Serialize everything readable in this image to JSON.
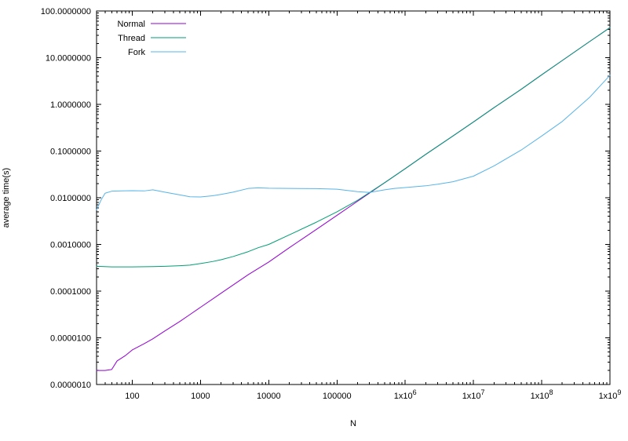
{
  "figure": {
    "background": "#ffffff",
    "border_color": "#000000"
  },
  "chart_data": {
    "type": "line",
    "title": "",
    "xlabel": "N",
    "ylabel": "average time(s)",
    "x_scale": "log",
    "y_scale": "log",
    "xlim": [
      30,
      1000000000
    ],
    "ylim": [
      1e-06,
      100
    ],
    "grid": false,
    "legend_position": "top-left",
    "x_ticks": [
      {
        "value": 100,
        "label": "100"
      },
      {
        "value": 1000,
        "label": "1000"
      },
      {
        "value": 10000,
        "label": "10000"
      },
      {
        "value": 100000,
        "label": "100000"
      },
      {
        "value": 1000000,
        "label": "1x10^6"
      },
      {
        "value": 10000000,
        "label": "1x10^7"
      },
      {
        "value": 100000000,
        "label": "1x10^8"
      },
      {
        "value": 1000000000,
        "label": "1x10^9"
      }
    ],
    "y_ticks": [
      {
        "value": 100,
        "label": "100.0000000"
      },
      {
        "value": 10,
        "label": "10.0000000"
      },
      {
        "value": 1,
        "label": "1.0000000"
      },
      {
        "value": 0.1,
        "label": "0.1000000"
      },
      {
        "value": 0.01,
        "label": "0.0100000"
      },
      {
        "value": 0.001,
        "label": "0.0010000"
      },
      {
        "value": 0.0001,
        "label": "0.0001000"
      },
      {
        "value": 1e-05,
        "label": "0.0000100"
      },
      {
        "value": 1e-06,
        "label": "0.0000010"
      }
    ],
    "series": [
      {
        "name": "Normal",
        "color": "#9400d3",
        "points": [
          [
            30,
            2e-06
          ],
          [
            40,
            2e-06
          ],
          [
            50,
            2.1e-06
          ],
          [
            60,
            3.2e-06
          ],
          [
            80,
            4.2e-06
          ],
          [
            100,
            5.5e-06
          ],
          [
            150,
            7.5e-06
          ],
          [
            200,
            9.5e-06
          ],
          [
            300,
            1.4e-05
          ],
          [
            500,
            2.25e-05
          ],
          [
            700,
            3.15e-05
          ],
          [
            1000,
            4.5e-05
          ],
          [
            2000,
            9e-05
          ],
          [
            5000,
            0.000225
          ],
          [
            10000,
            0.00042
          ],
          [
            20000,
            0.00085
          ],
          [
            50000,
            0.0021
          ],
          [
            100000,
            0.0042
          ],
          [
            200000,
            0.0084
          ],
          [
            500000,
            0.021
          ],
          [
            1000000,
            0.042
          ],
          [
            2000000,
            0.085
          ],
          [
            5000000,
            0.21
          ],
          [
            10000000,
            0.42
          ],
          [
            20000000,
            0.85
          ],
          [
            50000000,
            2.1
          ],
          [
            100000000,
            4.3
          ],
          [
            200000000,
            8.7
          ],
          [
            500000000,
            22
          ],
          [
            1000000000,
            44
          ]
        ]
      },
      {
        "name": "Thread",
        "color": "#009e73",
        "points": [
          [
            30,
            0.00034
          ],
          [
            50,
            0.00033
          ],
          [
            100,
            0.00033
          ],
          [
            200,
            0.000335
          ],
          [
            300,
            0.00034
          ],
          [
            500,
            0.00035
          ],
          [
            700,
            0.00036
          ],
          [
            1000,
            0.00039
          ],
          [
            1500,
            0.00043
          ],
          [
            2000,
            0.00047
          ],
          [
            3000,
            0.00055
          ],
          [
            5000,
            0.0007
          ],
          [
            7000,
            0.00085
          ],
          [
            10000,
            0.001
          ],
          [
            20000,
            0.0016
          ],
          [
            50000,
            0.003
          ],
          [
            100000,
            0.005
          ],
          [
            200000,
            0.0088
          ],
          [
            500000,
            0.021
          ],
          [
            1000000,
            0.042
          ],
          [
            2000000,
            0.085
          ],
          [
            5000000,
            0.21
          ],
          [
            10000000,
            0.42
          ],
          [
            20000000,
            0.85
          ],
          [
            50000000,
            2.1
          ],
          [
            100000000,
            4.3
          ],
          [
            200000000,
            8.7
          ],
          [
            500000000,
            22
          ],
          [
            1000000000,
            44
          ]
        ]
      },
      {
        "name": "Fork",
        "color": "#56b4e9",
        "points": [
          [
            30,
            0.0055
          ],
          [
            35,
            0.009
          ],
          [
            40,
            0.0125
          ],
          [
            50,
            0.0138
          ],
          [
            70,
            0.014
          ],
          [
            100,
            0.0142
          ],
          [
            150,
            0.014
          ],
          [
            200,
            0.0148
          ],
          [
            300,
            0.0132
          ],
          [
            500,
            0.0115
          ],
          [
            700,
            0.0105
          ],
          [
            1000,
            0.0104
          ],
          [
            1500,
            0.011
          ],
          [
            2000,
            0.0118
          ],
          [
            3000,
            0.0132
          ],
          [
            5000,
            0.0158
          ],
          [
            7000,
            0.0163
          ],
          [
            10000,
            0.016
          ],
          [
            20000,
            0.0158
          ],
          [
            50000,
            0.0157
          ],
          [
            100000,
            0.0152
          ],
          [
            200000,
            0.0135
          ],
          [
            300000,
            0.013
          ],
          [
            500000,
            0.0148
          ],
          [
            700000,
            0.0158
          ],
          [
            1000000,
            0.0165
          ],
          [
            2000000,
            0.018
          ],
          [
            3000000,
            0.0195
          ],
          [
            5000000,
            0.022
          ],
          [
            10000000,
            0.029
          ],
          [
            20000000,
            0.048
          ],
          [
            50000000,
            0.105
          ],
          [
            100000000,
            0.21
          ],
          [
            200000000,
            0.43
          ],
          [
            500000000,
            1.4
          ],
          [
            1000000000,
            4.2
          ]
        ]
      }
    ]
  }
}
